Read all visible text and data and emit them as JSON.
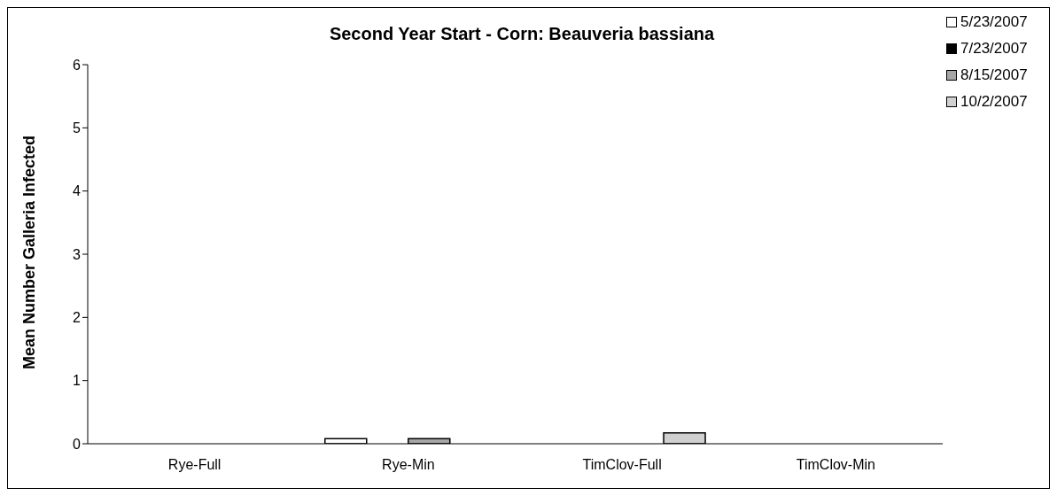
{
  "chart_data": {
    "type": "bar",
    "title": "Second Year Start - Corn: Beauveria bassiana",
    "ylabel": "Mean Number Galleria Infected",
    "categories": [
      "Rye-Full",
      "Rye-Min",
      "TimClov-Full",
      "TimClov-Min"
    ],
    "series": [
      {
        "name": "5/23/2007",
        "color": "#ffffff",
        "values": [
          0,
          0.08,
          0,
          0
        ]
      },
      {
        "name": "7/23/2007",
        "color": "#000000",
        "values": [
          0,
          0,
          0,
          0
        ]
      },
      {
        "name": "8/15/2007",
        "color": "#a6a6a6",
        "values": [
          0,
          0.08,
          0,
          0
        ]
      },
      {
        "name": "10/2/2007",
        "color": "#d0d0d0",
        "values": [
          0,
          0,
          0.17,
          0
        ]
      }
    ],
    "ylim": [
      0,
      6
    ],
    "yticks": [
      0,
      1,
      2,
      3,
      4,
      5,
      6
    ],
    "grid": false,
    "legend": "top right"
  }
}
